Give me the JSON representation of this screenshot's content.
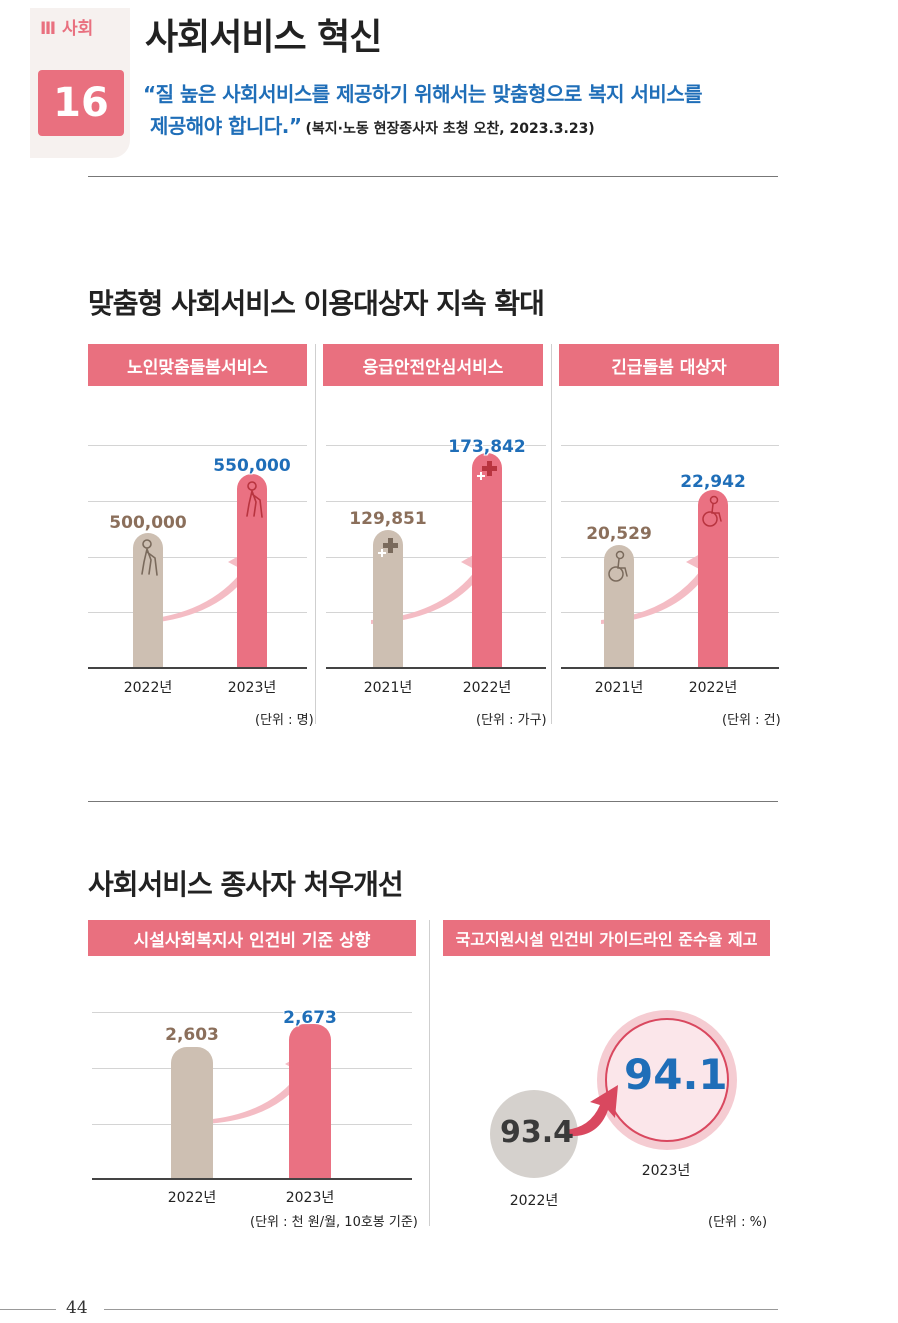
{
  "header": {
    "section_label": "Ⅲ 사회",
    "section_number": "16",
    "title": "사회서비스 혁신",
    "quote_line1": "“질 높은 사회서비스를 제공하기 위해서는 맞춤형으로 복지 서비스를",
    "quote_line2": "제공해야 합니다.”",
    "quote_source": "(복지·노동 현장종사자 초청 오찬, 2023.3.23)"
  },
  "section1": {
    "title": "맞춤형 사회서비스 이용대상자 지속 확대",
    "panels": [
      {
        "banner": "노인맞춤돌봄서비스",
        "prev_value": "500,000",
        "cur_value": "550,000",
        "prev_year": "2022년",
        "cur_year": "2023년",
        "unit": "(단위 : 명)",
        "icon": "elderly-icon"
      },
      {
        "banner": "응급안전안심서비스",
        "prev_value": "129,851",
        "cur_value": "173,842",
        "prev_year": "2021년",
        "cur_year": "2022년",
        "unit": "(단위 : 가구)",
        "icon": "medical-cross-icon"
      },
      {
        "banner": "긴급돌봄 대상자",
        "prev_value": "20,529",
        "cur_value": "22,942",
        "prev_year": "2021년",
        "cur_year": "2022년",
        "unit": "(단위 : 건)",
        "icon": "wheelchair-icon"
      }
    ]
  },
  "section2": {
    "title": "사회서비스 종사자 처우개선",
    "left_panel": {
      "banner": "시설사회복지사 인건비 기준 상향",
      "prev_value": "2,603",
      "cur_value": "2,673",
      "prev_year": "2022년",
      "cur_year": "2023년",
      "unit": "(단위 : 천 원/월, 10호봉 기준)"
    },
    "right_panel": {
      "banner": "국고지원시설 인건비 가이드라인 준수율 제고",
      "prev_value": "93.4",
      "cur_value": "94.1",
      "prev_year": "2022년",
      "cur_year": "2023년",
      "unit": "(단위 : %)"
    }
  },
  "footer": {
    "page_number": "44"
  },
  "colors": {
    "accent_pink": "#e9707f",
    "prev_bar": "#cdbfb2",
    "value_blue": "#1f6eb8",
    "prev_value_brown": "#8b6f5b"
  },
  "chart_data": [
    {
      "type": "bar",
      "title": "노인맞춤돌봄서비스",
      "categories": [
        "2022년",
        "2023년"
      ],
      "values": [
        500000,
        550000
      ],
      "unit": "(단위 : 명)"
    },
    {
      "type": "bar",
      "title": "응급안전안심서비스",
      "categories": [
        "2021년",
        "2022년"
      ],
      "values": [
        129851,
        173842
      ],
      "unit": "(단위 : 가구)"
    },
    {
      "type": "bar",
      "title": "긴급돌봄 대상자",
      "categories": [
        "2021년",
        "2022년"
      ],
      "values": [
        20529,
        22942
      ],
      "unit": "(단위 : 건)"
    },
    {
      "type": "bar",
      "title": "시설사회복지사 인건비 기준 상향",
      "categories": [
        "2022년",
        "2023년"
      ],
      "values": [
        2603,
        2673
      ],
      "unit": "(단위 : 천 원/월, 10호봉 기준)"
    },
    {
      "type": "bubble",
      "title": "국고지원시설 인건비 가이드라인 준수율 제고",
      "categories": [
        "2022년",
        "2023년"
      ],
      "values": [
        93.4,
        94.1
      ],
      "unit": "(단위 : %)"
    }
  ]
}
